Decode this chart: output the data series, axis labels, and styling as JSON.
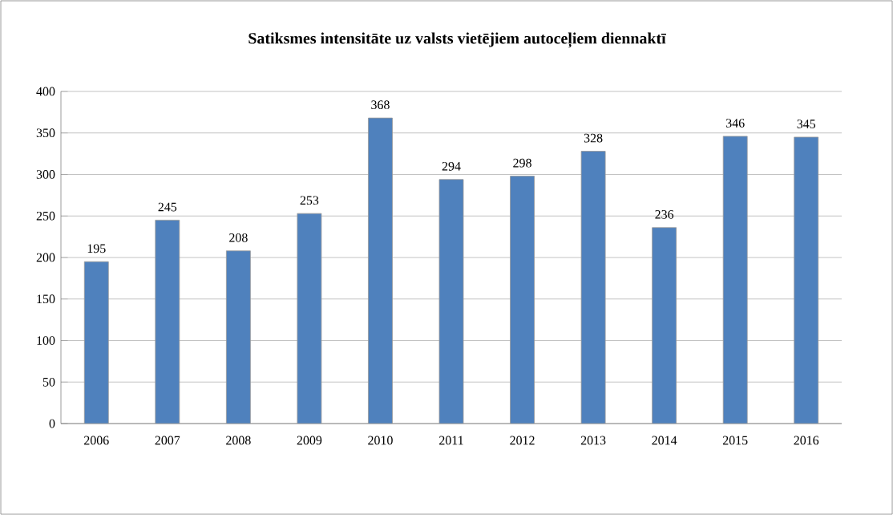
{
  "chart_data": {
    "type": "bar",
    "title": "Satiksmes intensitāte uz valsts vietējiem autoceļiem diennaktī",
    "categories": [
      "2006",
      "2007",
      "2008",
      "2009",
      "2010",
      "2011",
      "2012",
      "2013",
      "2014",
      "2015",
      "2016"
    ],
    "values": [
      195,
      245,
      208,
      253,
      368,
      294,
      298,
      328,
      236,
      346,
      345
    ],
    "color": "#4f81bd",
    "ylim": [
      0,
      400
    ],
    "yticks": [
      0,
      50,
      100,
      150,
      200,
      250,
      300,
      350,
      400
    ],
    "grid": "y",
    "data_labels": true
  }
}
